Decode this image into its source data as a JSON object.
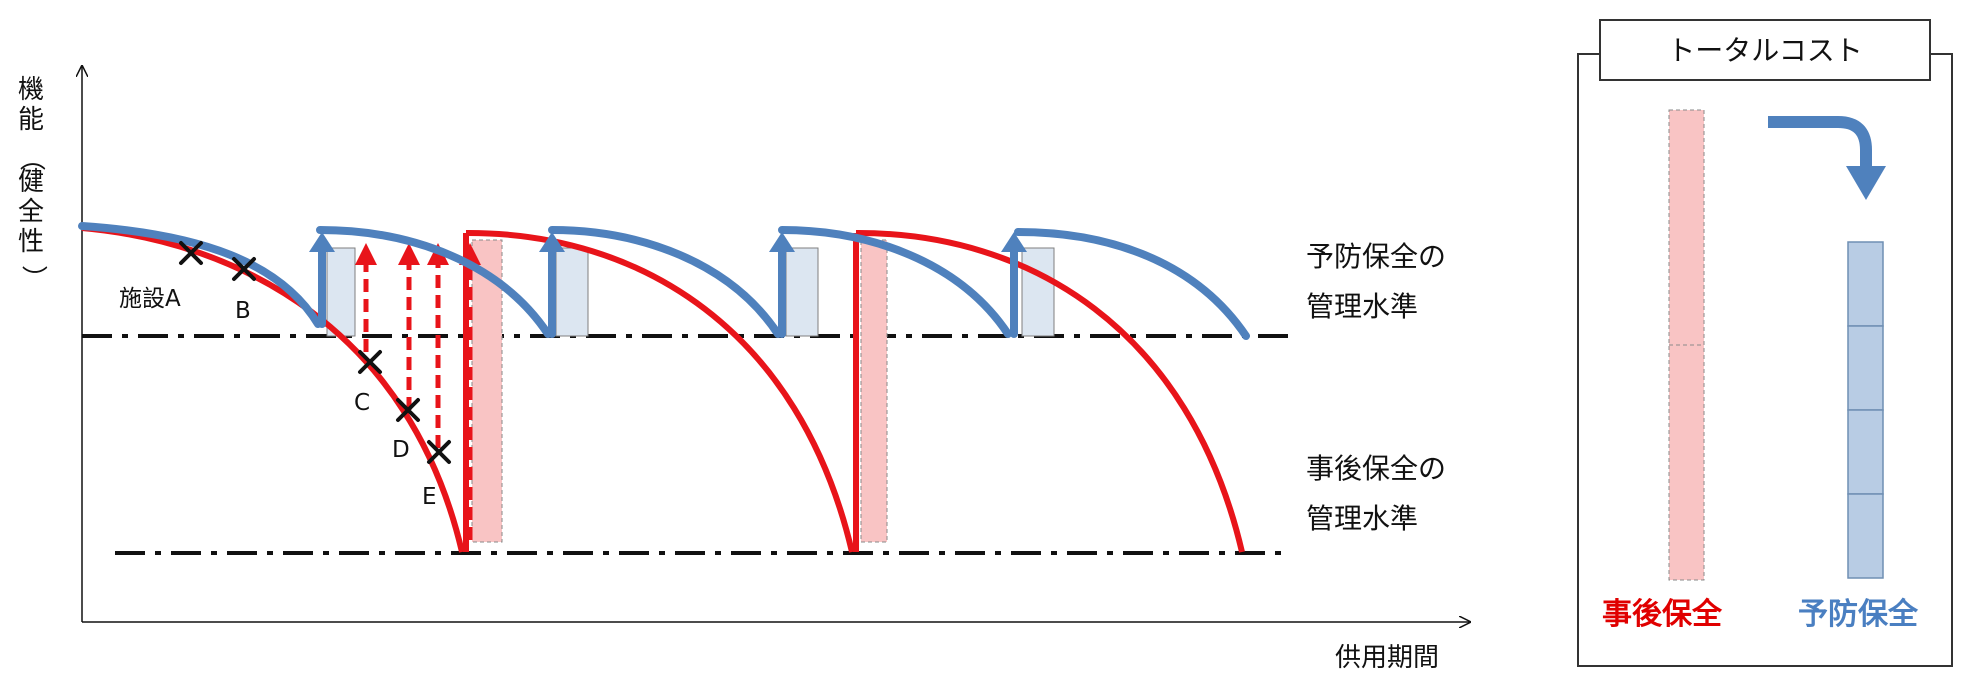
{
  "axes": {
    "y_label_chars": [
      "機",
      "能",
      "（",
      "健",
      "全",
      "性",
      "）"
    ],
    "x_label": "供用期間"
  },
  "levels": {
    "preventive": [
      "予防保全の",
      "管理水準"
    ],
    "corrective": [
      "事後保全の",
      "管理水準"
    ]
  },
  "points": {
    "facility_prefix": "施設",
    "a": "A",
    "b": "B",
    "c": "C",
    "d": "D",
    "e": "E"
  },
  "cost_panel": {
    "title": "トータルコスト",
    "corrective_label": "事後保全",
    "preventive_label": "予防保全"
  },
  "colors": {
    "corrective": "#e8141a",
    "preventive": "#4f81bd",
    "corrective_fill": "#f9c4c4",
    "preventive_fill": "#b8cce4",
    "preventive_light": "#dce6f1"
  }
}
